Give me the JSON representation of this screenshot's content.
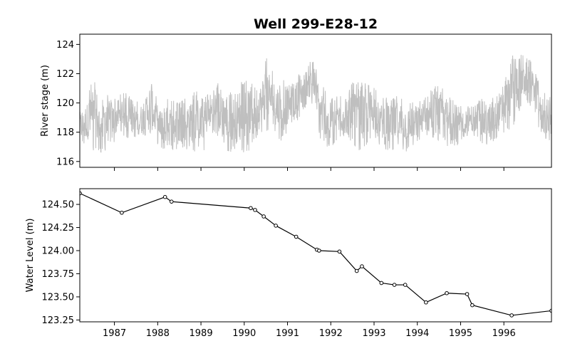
{
  "chart_data": [
    {
      "type": "line",
      "title": "Well 299-E28-12",
      "xlabel": "",
      "ylabel": "River stage (m)",
      "ylim": [
        115.6,
        124.7
      ],
      "y_ticks": [
        116,
        118,
        120,
        122,
        124
      ],
      "y_tick_labels": [
        "116",
        "118",
        "120",
        "122",
        "124"
      ],
      "xlim": [
        1986.2,
        1997.1
      ],
      "x_ticks": [
        1987,
        1988,
        1989,
        1990,
        1991,
        1992,
        1993,
        1994,
        1995,
        1996
      ],
      "x_tick_labels_shown": false,
      "grid": false,
      "series": [
        {
          "color": "#bfbfbf",
          "style": "dense high-frequency river stage trace",
          "envelope": {
            "x": [
              1986.2,
              1986.35,
              1986.5,
              1986.65,
              1986.8,
              1986.95,
              1987.1,
              1987.25,
              1987.4,
              1987.55,
              1987.7,
              1987.85,
              1988.0,
              1988.15,
              1988.3,
              1988.45,
              1988.6,
              1988.75,
              1988.9,
              1989.05,
              1989.2,
              1989.35,
              1989.5,
              1989.65,
              1989.8,
              1989.95,
              1990.1,
              1990.25,
              1990.4,
              1990.55,
              1990.7,
              1990.85,
              1991.0,
              1991.15,
              1991.3,
              1991.45,
              1991.6,
              1991.75,
              1991.9,
              1992.05,
              1992.2,
              1992.35,
              1992.5,
              1992.65,
              1992.8,
              1992.95,
              1993.1,
              1993.25,
              1993.4,
              1993.55,
              1993.7,
              1993.85,
              1994.0,
              1994.15,
              1994.3,
              1994.45,
              1994.6,
              1994.75,
              1994.9,
              1995.05,
              1995.2,
              1995.35,
              1995.5,
              1995.65,
              1995.8,
              1995.95,
              1996.1,
              1996.25,
              1996.4,
              1996.55,
              1996.7,
              1996.85,
              1997.0,
              1997.1
            ],
            "high": [
              119.5,
              120.2,
              121.9,
              120.6,
              120.8,
              120.3,
              120.5,
              121.0,
              120.2,
              120.4,
              120.0,
              121.9,
              120.1,
              120.3,
              120.3,
              120.1,
              120.2,
              120.7,
              120.8,
              120.5,
              120.8,
              121.3,
              121.6,
              120.7,
              120.9,
              121.5,
              121.6,
              122.1,
              122.2,
              123.4,
              121.6,
              121.9,
              121.6,
              121.5,
              122.3,
              122.8,
              122.9,
              121.5,
              121.0,
              120.3,
              120.6,
              120.9,
              121.5,
              121.4,
              121.4,
              121.5,
              120.5,
              120.6,
              120.5,
              120.6,
              120.5,
              120.2,
              120.0,
              120.4,
              120.9,
              121.3,
              121.1,
              120.4,
              120.0,
              119.9,
              120.0,
              120.1,
              120.3,
              120.4,
              120.6,
              121.1,
              122.3,
              123.8,
              123.6,
              123.3,
              122.5,
              121.0,
              120.5,
              120.5
            ],
            "low": [
              117.4,
              117.0,
              116.7,
              116.6,
              116.6,
              117.1,
              117.8,
              117.7,
              117.4,
              117.6,
              117.6,
              117.8,
              116.8,
              116.7,
              116.6,
              116.7,
              116.8,
              116.6,
              116.5,
              116.6,
              117.8,
              117.9,
              116.8,
              116.6,
              116.7,
              116.6,
              116.7,
              117.5,
              117.8,
              118.0,
              117.9,
              117.4,
              118.0,
              118.6,
              119.0,
              119.8,
              119.8,
              117.5,
              117.0,
              116.9,
              117.5,
              117.8,
              117.0,
              116.7,
              116.8,
              117.6,
              117.2,
              116.8,
              116.7,
              116.6,
              116.6,
              116.8,
              117.2,
              117.5,
              117.4,
              117.3,
              116.9,
              116.8,
              116.9,
              117.4,
              117.7,
              117.5,
              117.2,
              117.1,
              117.4,
              118.0,
              117.8,
              118.6,
              119.8,
              119.9,
              119.5,
              117.8,
              117.2,
              117.5
            ]
          }
        }
      ]
    },
    {
      "type": "line",
      "title": "",
      "xlabel": "",
      "ylabel": "Water Level (m)",
      "ylim": [
        123.23,
        124.67
      ],
      "y_ticks": [
        123.25,
        123.5,
        123.75,
        124.0,
        124.25,
        124.5
      ],
      "y_tick_labels": [
        "123.25",
        "123.50",
        "123.75",
        "124.00",
        "124.25",
        "124.50"
      ],
      "xlim": [
        1986.2,
        1997.1
      ],
      "x_ticks": [
        1987,
        1988,
        1989,
        1990,
        1991,
        1992,
        1993,
        1994,
        1995,
        1996
      ],
      "x_tick_labels": [
        "1987",
        "1988",
        "1989",
        "1990",
        "1991",
        "1992",
        "1993",
        "1994",
        "1995",
        "1996"
      ],
      "grid": false,
      "series": [
        {
          "color": "#000000",
          "marker": "open-circle",
          "x": [
            1986.2,
            1987.17,
            1988.17,
            1988.32,
            1990.15,
            1990.25,
            1990.45,
            1990.73,
            1991.2,
            1991.68,
            1991.73,
            1992.2,
            1992.6,
            1992.72,
            1993.17,
            1993.47,
            1993.72,
            1994.2,
            1994.68,
            1995.15,
            1995.27,
            1996.18,
            1997.1
          ],
          "y": [
            124.62,
            124.41,
            124.58,
            124.53,
            124.46,
            124.44,
            124.37,
            124.27,
            124.15,
            124.01,
            124.0,
            123.99,
            123.78,
            123.83,
            123.65,
            123.63,
            123.63,
            123.44,
            123.54,
            123.53,
            123.41,
            123.3,
            123.35
          ]
        }
      ]
    }
  ]
}
